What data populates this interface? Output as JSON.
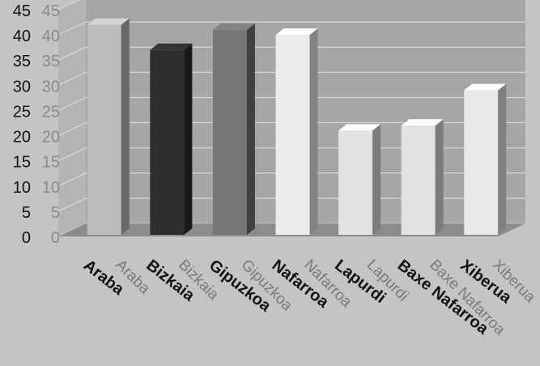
{
  "chart_data": {
    "type": "bar",
    "title": "",
    "xlabel": "",
    "ylabel": "",
    "ylim": [
      0,
      45
    ],
    "yticks": [
      0,
      5,
      10,
      15,
      20,
      25,
      30,
      35,
      40,
      45
    ],
    "grid": true,
    "categories": [
      "Araba",
      "Bizkaia",
      "Gipuzkoa",
      "Nafarroa",
      "Lapurdi",
      "Baxe Nafarroa",
      "Xiberua"
    ],
    "values": [
      42,
      37,
      41,
      40,
      21,
      22,
      29
    ],
    "bar_shades": [
      "#bcbcbc",
      "#2e2e2e",
      "#767676",
      "#ececec",
      "#e2e2e2",
      "#e2e2e2",
      "#e8e8e8"
    ],
    "colors": {
      "background": "#c4c4c4",
      "back_wall": "#a6a6a6",
      "floor": "#8c8c8c",
      "gridline": "#d8d8d8"
    }
  }
}
